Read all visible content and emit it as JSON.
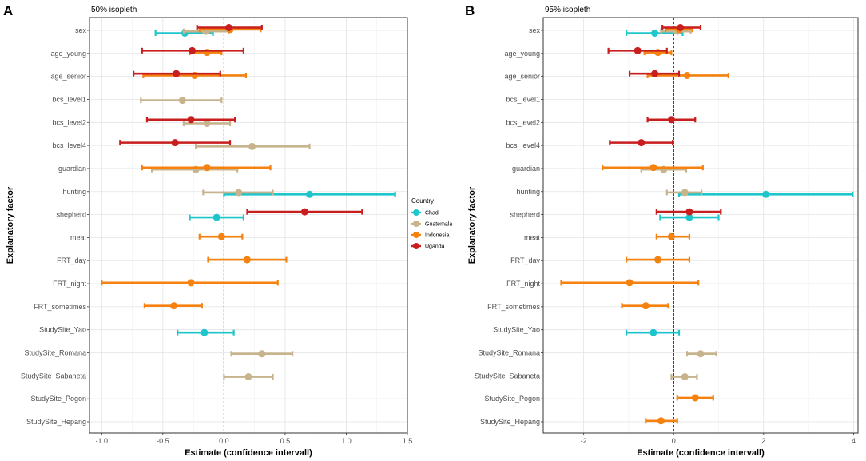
{
  "chart_data": [
    {
      "type": "forest",
      "panel_letter": "A",
      "title": "50% isopleth",
      "xlabel": "Estimate (confidence intervall)",
      "ylabel": "Explanatory factor",
      "xlim": [
        -1.1,
        1.5
      ],
      "xticks": [
        -1.0,
        -0.5,
        0.0,
        0.5,
        1.0,
        1.5
      ],
      "xtick_labels": [
        "-1.0",
        "-0.5",
        "0.0",
        "0.5",
        "1.0",
        "1.5"
      ],
      "reference_line": 0,
      "categories": [
        "sex",
        "age_young",
        "age_senior",
        "bcs_level1",
        "bcs_level2",
        "bcs_level4",
        "guardian",
        "hunting",
        "shepherd",
        "meat",
        "FRT_day",
        "FRT_night",
        "FRT_sometimes",
        "StudySite_Yao",
        "StudySite_Romana",
        "StudySite_Sabaneta",
        "StudySite_Pogon",
        "StudySite_Hepang"
      ],
      "series": [
        {
          "name": "Chad",
          "color": "#1EC6CC",
          "points": [
            {
              "factor": "sex",
              "est": -0.32,
              "lo": -0.56,
              "hi": -0.09
            },
            {
              "factor": "hunting",
              "est": 0.7,
              "lo": 0.0,
              "hi": 1.4
            },
            {
              "factor": "shepherd",
              "est": -0.06,
              "lo": -0.28,
              "hi": 0.16
            },
            {
              "factor": "StudySite_Yao",
              "est": -0.16,
              "lo": -0.38,
              "hi": 0.08
            }
          ]
        },
        {
          "name": "Guatemala",
          "color": "#C8B48C",
          "points": [
            {
              "factor": "sex",
              "est": -0.15,
              "lo": -0.33,
              "hi": 0.04
            },
            {
              "factor": "bcs_level1",
              "est": -0.34,
              "lo": -0.68,
              "hi": -0.02
            },
            {
              "factor": "bcs_level2",
              "est": -0.14,
              "lo": -0.33,
              "hi": 0.05
            },
            {
              "factor": "bcs_level4",
              "est": 0.23,
              "lo": -0.23,
              "hi": 0.7
            },
            {
              "factor": "guardian",
              "est": -0.23,
              "lo": -0.59,
              "hi": 0.11
            },
            {
              "factor": "hunting",
              "est": 0.12,
              "lo": -0.17,
              "hi": 0.4
            },
            {
              "factor": "StudySite_Romana",
              "est": 0.31,
              "lo": 0.06,
              "hi": 0.56
            },
            {
              "factor": "StudySite_Sabaneta",
              "est": 0.2,
              "lo": 0.0,
              "hi": 0.4
            }
          ]
        },
        {
          "name": "Indonesia",
          "color": "#F5820F",
          "points": [
            {
              "factor": "sex",
              "est": 0.05,
              "lo": -0.2,
              "hi": 0.3
            },
            {
              "factor": "age_young",
              "est": -0.14,
              "lo": -0.28,
              "hi": -0.02
            },
            {
              "factor": "age_senior",
              "est": -0.24,
              "lo": -0.66,
              "hi": 0.18
            },
            {
              "factor": "guardian",
              "est": -0.14,
              "lo": -0.67,
              "hi": 0.38
            },
            {
              "factor": "meat",
              "est": -0.02,
              "lo": -0.2,
              "hi": 0.15
            },
            {
              "factor": "FRT_day",
              "est": 0.19,
              "lo": -0.13,
              "hi": 0.51
            },
            {
              "factor": "FRT_night",
              "est": -0.27,
              "lo": -1.0,
              "hi": 0.44
            },
            {
              "factor": "FRT_sometimes",
              "est": -0.41,
              "lo": -0.65,
              "hi": -0.18
            }
          ]
        },
        {
          "name": "Uganda",
          "color": "#C81E1E",
          "points": [
            {
              "factor": "sex",
              "est": 0.04,
              "lo": -0.22,
              "hi": 0.31
            },
            {
              "factor": "age_young",
              "est": -0.26,
              "lo": -0.67,
              "hi": 0.16
            },
            {
              "factor": "age_senior",
              "est": -0.39,
              "lo": -0.74,
              "hi": -0.03
            },
            {
              "factor": "bcs_level2",
              "est": -0.27,
              "lo": -0.63,
              "hi": 0.09
            },
            {
              "factor": "bcs_level4",
              "est": -0.4,
              "lo": -0.85,
              "hi": 0.05
            },
            {
              "factor": "shepherd",
              "est": 0.66,
              "lo": 0.19,
              "hi": 1.13
            }
          ]
        }
      ]
    },
    {
      "type": "forest",
      "panel_letter": "B",
      "title": "95% isopleth",
      "xlabel": "Estimate (confidence intervall)",
      "ylabel": "Explanatory factor",
      "xlim": [
        -2.9,
        4.1
      ],
      "xticks": [
        -2,
        0,
        2,
        4
      ],
      "xtick_labels": [
        "-2",
        "0",
        "2",
        "4"
      ],
      "reference_line": 0,
      "categories": [
        "sex",
        "age_young",
        "age_senior",
        "bcs_level1",
        "bcs_level2",
        "bcs_level4",
        "guardian",
        "hunting",
        "shepherd",
        "meat",
        "FRT_day",
        "FRT_night",
        "FRT_sometimes",
        "StudySite_Yao",
        "StudySite_Romana",
        "StudySite_Sabaneta",
        "StudySite_Pogon",
        "StudySite_Hepang"
      ],
      "series": [
        {
          "name": "Chad",
          "color": "#1EC6CC",
          "points": [
            {
              "factor": "sex",
              "est": -0.42,
              "lo": -1.05,
              "hi": 0.2
            },
            {
              "factor": "hunting",
              "est": 2.05,
              "lo": 0.12,
              "hi": 3.98
            },
            {
              "factor": "shepherd",
              "est": 0.35,
              "lo": -0.3,
              "hi": 1.0
            },
            {
              "factor": "StudySite_Yao",
              "est": -0.45,
              "lo": -1.05,
              "hi": 0.12
            }
          ]
        },
        {
          "name": "Guatemala",
          "color": "#C8B48C",
          "points": [
            {
              "factor": "sex",
              "est": 0.08,
              "lo": -0.28,
              "hi": 0.38
            },
            {
              "factor": "guardian",
              "est": -0.22,
              "lo": -0.72,
              "hi": 0.28
            },
            {
              "factor": "hunting",
              "est": 0.25,
              "lo": -0.15,
              "hi": 0.62
            },
            {
              "factor": "StudySite_Romana",
              "est": 0.6,
              "lo": 0.3,
              "hi": 0.95
            },
            {
              "factor": "StudySite_Sabaneta",
              "est": 0.25,
              "lo": -0.05,
              "hi": 0.52
            }
          ]
        },
        {
          "name": "Indonesia",
          "color": "#F5820F",
          "points": [
            {
              "factor": "sex",
              "est": 0.12,
              "lo": -0.18,
              "hi": 0.42
            },
            {
              "factor": "age_young",
              "est": -0.35,
              "lo": -0.65,
              "hi": -0.05
            },
            {
              "factor": "age_senior",
              "est": 0.3,
              "lo": -0.58,
              "hi": 1.22
            },
            {
              "factor": "guardian",
              "est": -0.45,
              "lo": -1.58,
              "hi": 0.65
            },
            {
              "factor": "meat",
              "est": -0.05,
              "lo": -0.38,
              "hi": 0.35
            },
            {
              "factor": "FRT_day",
              "est": -0.35,
              "lo": -1.05,
              "hi": 0.35
            },
            {
              "factor": "FRT_night",
              "est": -0.98,
              "lo": -2.5,
              "hi": 0.55
            },
            {
              "factor": "FRT_sometimes",
              "est": -0.62,
              "lo": -1.15,
              "hi": -0.12
            },
            {
              "factor": "StudySite_Pogon",
              "est": 0.48,
              "lo": 0.08,
              "hi": 0.88
            },
            {
              "factor": "StudySite_Hepang",
              "est": -0.28,
              "lo": -0.62,
              "hi": 0.08
            }
          ]
        },
        {
          "name": "Uganda",
          "color": "#C81E1E",
          "points": [
            {
              "factor": "sex",
              "est": 0.15,
              "lo": -0.25,
              "hi": 0.6
            },
            {
              "factor": "age_young",
              "est": -0.8,
              "lo": -1.45,
              "hi": -0.15
            },
            {
              "factor": "age_senior",
              "est": -0.42,
              "lo": -0.98,
              "hi": 0.12
            },
            {
              "factor": "bcs_level2",
              "est": -0.05,
              "lo": -0.58,
              "hi": 0.48
            },
            {
              "factor": "bcs_level4",
              "est": -0.72,
              "lo": -1.42,
              "hi": -0.02
            },
            {
              "factor": "shepherd",
              "est": 0.35,
              "lo": -0.38,
              "hi": 1.05
            }
          ]
        }
      ]
    }
  ],
  "legend": {
    "title": "Country",
    "items": [
      {
        "name": "Chad",
        "color": "#1EC6CC"
      },
      {
        "name": "Guatemala",
        "color": "#C8B48C"
      },
      {
        "name": "Indonesia",
        "color": "#F5820F"
      },
      {
        "name": "Uganda",
        "color": "#C81E1E"
      }
    ]
  }
}
